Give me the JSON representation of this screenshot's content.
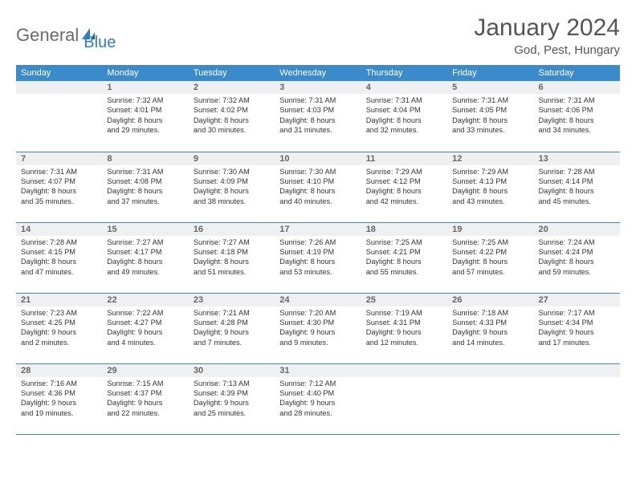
{
  "logo": {
    "text1": "General",
    "text2": "Blue"
  },
  "title": "January 2024",
  "location": "God, Pest, Hungary",
  "weekdays": [
    "Sunday",
    "Monday",
    "Tuesday",
    "Wednesday",
    "Thursday",
    "Friday",
    "Saturday"
  ],
  "colors": {
    "header_bg": "#3b8bca",
    "header_text": "#ffffff",
    "daynum_bg": "#eef0f1",
    "rule": "#3b8bca",
    "logo_gray": "#6b6b6b",
    "logo_blue": "#2f7dc0"
  },
  "weeks": [
    [
      null,
      {
        "n": "1",
        "sr": "Sunrise: 7:32 AM",
        "ss": "Sunset: 4:01 PM",
        "d1": "Daylight: 8 hours",
        "d2": "and 29 minutes."
      },
      {
        "n": "2",
        "sr": "Sunrise: 7:32 AM",
        "ss": "Sunset: 4:02 PM",
        "d1": "Daylight: 8 hours",
        "d2": "and 30 minutes."
      },
      {
        "n": "3",
        "sr": "Sunrise: 7:31 AM",
        "ss": "Sunset: 4:03 PM",
        "d1": "Daylight: 8 hours",
        "d2": "and 31 minutes."
      },
      {
        "n": "4",
        "sr": "Sunrise: 7:31 AM",
        "ss": "Sunset: 4:04 PM",
        "d1": "Daylight: 8 hours",
        "d2": "and 32 minutes."
      },
      {
        "n": "5",
        "sr": "Sunrise: 7:31 AM",
        "ss": "Sunset: 4:05 PM",
        "d1": "Daylight: 8 hours",
        "d2": "and 33 minutes."
      },
      {
        "n": "6",
        "sr": "Sunrise: 7:31 AM",
        "ss": "Sunset: 4:06 PM",
        "d1": "Daylight: 8 hours",
        "d2": "and 34 minutes."
      }
    ],
    [
      {
        "n": "7",
        "sr": "Sunrise: 7:31 AM",
        "ss": "Sunset: 4:07 PM",
        "d1": "Daylight: 8 hours",
        "d2": "and 35 minutes."
      },
      {
        "n": "8",
        "sr": "Sunrise: 7:31 AM",
        "ss": "Sunset: 4:08 PM",
        "d1": "Daylight: 8 hours",
        "d2": "and 37 minutes."
      },
      {
        "n": "9",
        "sr": "Sunrise: 7:30 AM",
        "ss": "Sunset: 4:09 PM",
        "d1": "Daylight: 8 hours",
        "d2": "and 38 minutes."
      },
      {
        "n": "10",
        "sr": "Sunrise: 7:30 AM",
        "ss": "Sunset: 4:10 PM",
        "d1": "Daylight: 8 hours",
        "d2": "and 40 minutes."
      },
      {
        "n": "11",
        "sr": "Sunrise: 7:29 AM",
        "ss": "Sunset: 4:12 PM",
        "d1": "Daylight: 8 hours",
        "d2": "and 42 minutes."
      },
      {
        "n": "12",
        "sr": "Sunrise: 7:29 AM",
        "ss": "Sunset: 4:13 PM",
        "d1": "Daylight: 8 hours",
        "d2": "and 43 minutes."
      },
      {
        "n": "13",
        "sr": "Sunrise: 7:28 AM",
        "ss": "Sunset: 4:14 PM",
        "d1": "Daylight: 8 hours",
        "d2": "and 45 minutes."
      }
    ],
    [
      {
        "n": "14",
        "sr": "Sunrise: 7:28 AM",
        "ss": "Sunset: 4:15 PM",
        "d1": "Daylight: 8 hours",
        "d2": "and 47 minutes."
      },
      {
        "n": "15",
        "sr": "Sunrise: 7:27 AM",
        "ss": "Sunset: 4:17 PM",
        "d1": "Daylight: 8 hours",
        "d2": "and 49 minutes."
      },
      {
        "n": "16",
        "sr": "Sunrise: 7:27 AM",
        "ss": "Sunset: 4:18 PM",
        "d1": "Daylight: 8 hours",
        "d2": "and 51 minutes."
      },
      {
        "n": "17",
        "sr": "Sunrise: 7:26 AM",
        "ss": "Sunset: 4:19 PM",
        "d1": "Daylight: 8 hours",
        "d2": "and 53 minutes."
      },
      {
        "n": "18",
        "sr": "Sunrise: 7:25 AM",
        "ss": "Sunset: 4:21 PM",
        "d1": "Daylight: 8 hours",
        "d2": "and 55 minutes."
      },
      {
        "n": "19",
        "sr": "Sunrise: 7:25 AM",
        "ss": "Sunset: 4:22 PM",
        "d1": "Daylight: 8 hours",
        "d2": "and 57 minutes."
      },
      {
        "n": "20",
        "sr": "Sunrise: 7:24 AM",
        "ss": "Sunset: 4:24 PM",
        "d1": "Daylight: 8 hours",
        "d2": "and 59 minutes."
      }
    ],
    [
      {
        "n": "21",
        "sr": "Sunrise: 7:23 AM",
        "ss": "Sunset: 4:25 PM",
        "d1": "Daylight: 9 hours",
        "d2": "and 2 minutes."
      },
      {
        "n": "22",
        "sr": "Sunrise: 7:22 AM",
        "ss": "Sunset: 4:27 PM",
        "d1": "Daylight: 9 hours",
        "d2": "and 4 minutes."
      },
      {
        "n": "23",
        "sr": "Sunrise: 7:21 AM",
        "ss": "Sunset: 4:28 PM",
        "d1": "Daylight: 9 hours",
        "d2": "and 7 minutes."
      },
      {
        "n": "24",
        "sr": "Sunrise: 7:20 AM",
        "ss": "Sunset: 4:30 PM",
        "d1": "Daylight: 9 hours",
        "d2": "and 9 minutes."
      },
      {
        "n": "25",
        "sr": "Sunrise: 7:19 AM",
        "ss": "Sunset: 4:31 PM",
        "d1": "Daylight: 9 hours",
        "d2": "and 12 minutes."
      },
      {
        "n": "26",
        "sr": "Sunrise: 7:18 AM",
        "ss": "Sunset: 4:33 PM",
        "d1": "Daylight: 9 hours",
        "d2": "and 14 minutes."
      },
      {
        "n": "27",
        "sr": "Sunrise: 7:17 AM",
        "ss": "Sunset: 4:34 PM",
        "d1": "Daylight: 9 hours",
        "d2": "and 17 minutes."
      }
    ],
    [
      {
        "n": "28",
        "sr": "Sunrise: 7:16 AM",
        "ss": "Sunset: 4:36 PM",
        "d1": "Daylight: 9 hours",
        "d2": "and 19 minutes."
      },
      {
        "n": "29",
        "sr": "Sunrise: 7:15 AM",
        "ss": "Sunset: 4:37 PM",
        "d1": "Daylight: 9 hours",
        "d2": "and 22 minutes."
      },
      {
        "n": "30",
        "sr": "Sunrise: 7:13 AM",
        "ss": "Sunset: 4:39 PM",
        "d1": "Daylight: 9 hours",
        "d2": "and 25 minutes."
      },
      {
        "n": "31",
        "sr": "Sunrise: 7:12 AM",
        "ss": "Sunset: 4:40 PM",
        "d1": "Daylight: 9 hours",
        "d2": "and 28 minutes."
      },
      null,
      null,
      null
    ]
  ]
}
